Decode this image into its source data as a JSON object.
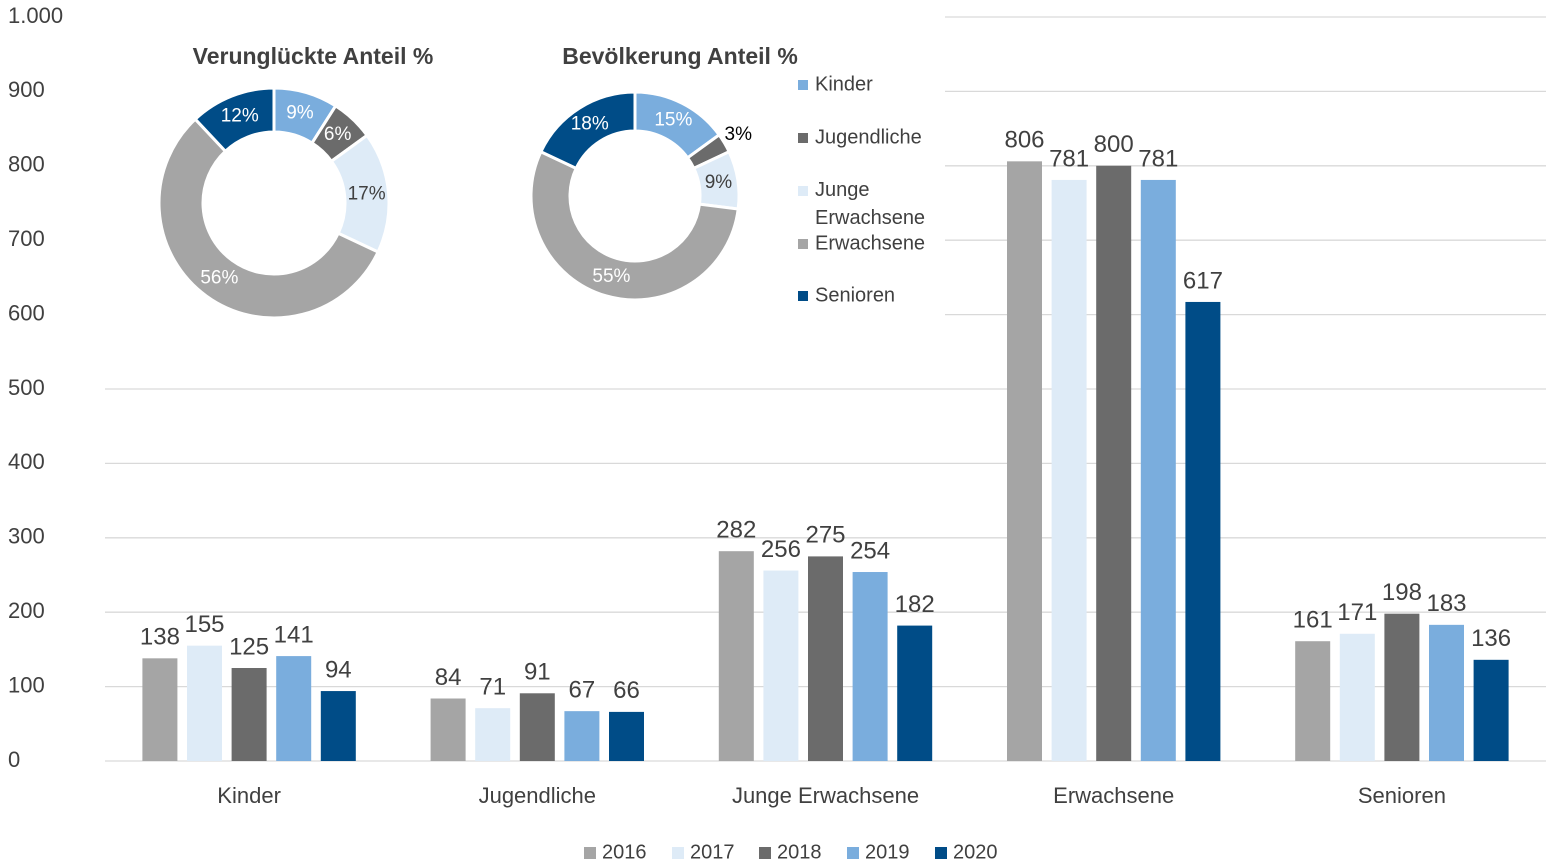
{
  "chart_data": [
    {
      "type": "bar",
      "categories": [
        "Kinder",
        "Jugendliche",
        "Junge Erwachsene",
        "Erwachsene",
        "Senioren"
      ],
      "series": [
        {
          "name": "2016",
          "color": "#a5a5a5",
          "values": [
            138,
            84,
            282,
            806,
            161
          ]
        },
        {
          "name": "2017",
          "color": "#deebf7",
          "values": [
            155,
            71,
            256,
            781,
            171
          ]
        },
        {
          "name": "2018",
          "color": "#6b6b6b",
          "values": [
            125,
            91,
            275,
            800,
            198
          ]
        },
        {
          "name": "2019",
          "color": "#7aaddd",
          "values": [
            141,
            67,
            254,
            781,
            183
          ]
        },
        {
          "name": "2020",
          "color": "#004c87",
          "values": [
            94,
            66,
            182,
            617,
            136
          ]
        }
      ],
      "ylim": [
        0,
        1000
      ],
      "yticks": [
        0,
        100,
        200,
        300,
        400,
        500,
        600,
        700,
        800,
        900,
        {
          "value": 1000,
          "label": "1.000"
        }
      ],
      "grid": true,
      "legend": "bottom"
    },
    {
      "type": "donut",
      "title": "Verunglückte Anteil %",
      "categories": [
        "Kinder",
        "Jugendliche",
        "Junge Erwachsene",
        "Erwachsene",
        "Senioren"
      ],
      "colors": [
        "#7aaddd",
        "#6b6b6b",
        "#deebf7",
        "#a5a5a5",
        "#004c87"
      ],
      "values": [
        9,
        6,
        17,
        56,
        12
      ],
      "value_labels": [
        "9%",
        "6%",
        "17%",
        "56%",
        "12%"
      ],
      "legend": "right"
    },
    {
      "type": "donut",
      "title": "Bevölkerung Anteil %",
      "colors": [
        "#7aaddd",
        "#6b6b6b",
        "#deebf7",
        "#a5a5a5",
        "#004c87"
      ],
      "values": [
        15,
        3,
        9,
        55,
        18
      ],
      "value_labels": [
        "15%",
        "3%",
        "9%",
        "55%",
        "18%"
      ]
    }
  ]
}
